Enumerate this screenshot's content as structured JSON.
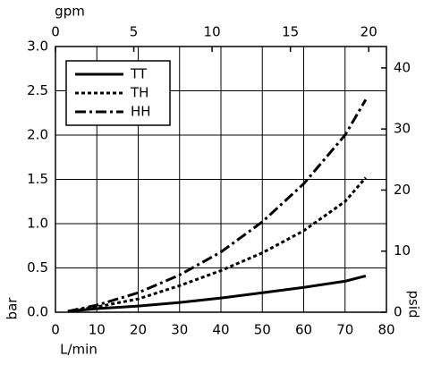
{
  "chart_data": {
    "type": "line",
    "x_label": "L/min",
    "y_label": "bar",
    "x2_label": "gpm",
    "y2_label": "psid",
    "x": [
      3,
      10,
      20,
      30,
      40,
      50,
      60,
      70,
      75
    ],
    "series": [
      {
        "name": "TT",
        "color": "#000000",
        "dash": "solid",
        "values": [
          0.01,
          0.04,
          0.07,
          0.11,
          0.16,
          0.22,
          0.28,
          0.35,
          0.41
        ]
      },
      {
        "name": "TH",
        "color": "#000000",
        "dash": "dotted",
        "values": [
          0.01,
          0.06,
          0.15,
          0.3,
          0.47,
          0.67,
          0.92,
          1.25,
          1.52
        ]
      },
      {
        "name": "HH",
        "color": "#000000",
        "dash": "dashdot",
        "values": [
          0.01,
          0.08,
          0.22,
          0.42,
          0.68,
          1.02,
          1.45,
          2.0,
          2.4
        ]
      }
    ],
    "xlim": [
      0,
      80
    ],
    "xticks": [
      0,
      10,
      20,
      30,
      40,
      50,
      60,
      70,
      80
    ],
    "ylim": [
      0,
      3.0
    ],
    "yticks": [
      {
        "value": 0,
        "label": "0.0"
      },
      0.5,
      {
        "value": 1,
        "label": "1.0"
      },
      1.5,
      {
        "value": 2,
        "label": "2.0"
      },
      2.5,
      {
        "value": 3,
        "label": "3.0"
      }
    ],
    "x2lim": [
      0,
      21.13
    ],
    "x2ticks": [
      0,
      5,
      10,
      15,
      20
    ],
    "y2lim": [
      0,
      43.5
    ],
    "y2ticks": [
      0,
      10,
      20,
      30,
      40
    ],
    "grid": true,
    "legend": "upper left"
  }
}
